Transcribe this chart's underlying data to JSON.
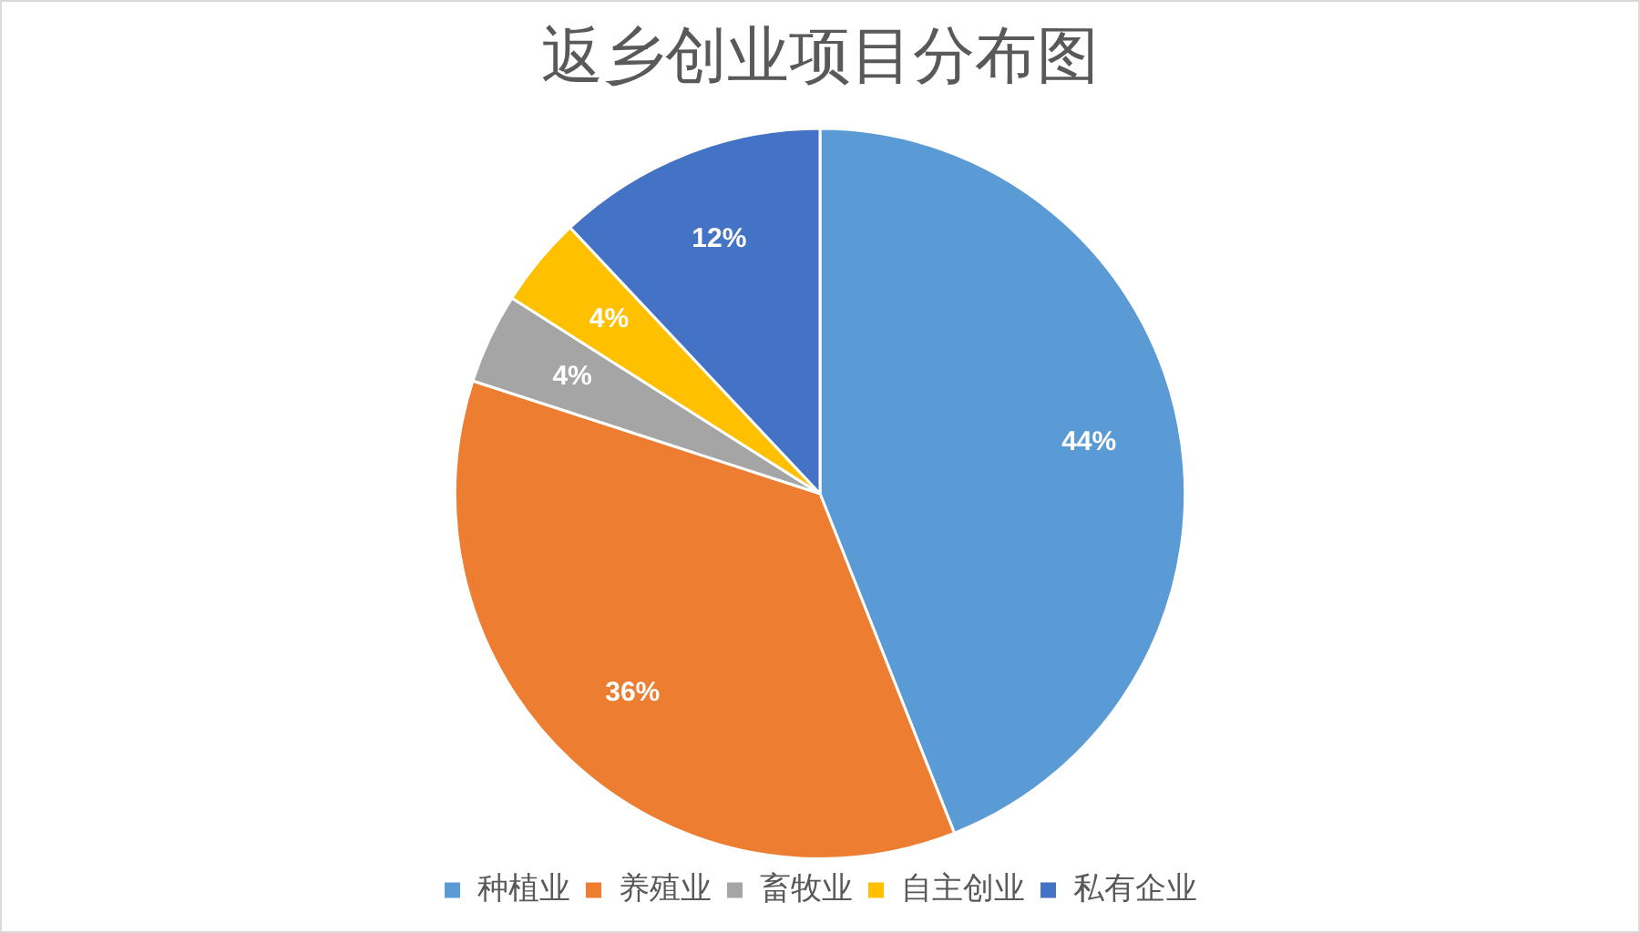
{
  "chart_data": {
    "type": "pie",
    "title": "返乡创业项目分布图",
    "categories": [
      "种植业",
      "养殖业",
      "畜牧业",
      "自主创业",
      "私有企业"
    ],
    "values": [
      44,
      36,
      4,
      4,
      12
    ],
    "colors": [
      "#5b9bd5",
      "#ed7d31",
      "#a5a5a5",
      "#ffc000",
      "#4472c4"
    ],
    "value_labels": [
      "44%",
      "36%",
      "4%",
      "4%",
      "12%"
    ],
    "legend": "bottom"
  }
}
